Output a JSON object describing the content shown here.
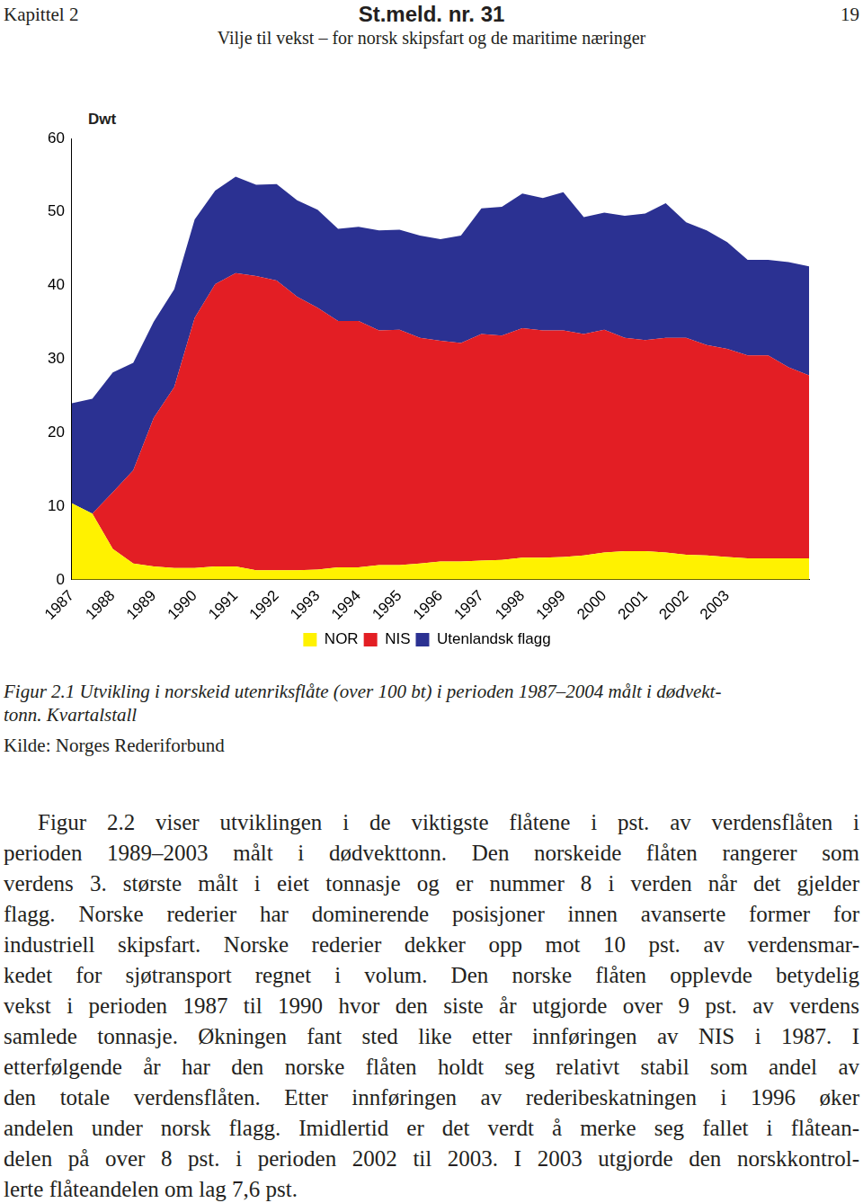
{
  "header": {
    "chapter": "Kapittel 2",
    "document": "St.meld. nr. 31",
    "page": "19",
    "subtitle": "Vilje til vekst – for norsk skipsfart og de maritime næringer"
  },
  "chart_data": {
    "type": "area",
    "y_label": "Dwt",
    "stacked": true,
    "grid": false,
    "legend": "bottom",
    "ylim": [
      0,
      60
    ],
    "yticks": [
      0,
      10,
      20,
      30,
      40,
      50,
      60
    ],
    "categories": [
      "1987",
      null,
      "1988",
      null,
      "1989",
      null,
      "1990",
      null,
      "1991",
      null,
      "1992",
      null,
      "1993",
      null,
      "1994",
      null,
      "1995",
      null,
      "1996",
      null,
      "1997",
      null,
      "1998",
      null,
      "1999",
      null,
      "2000",
      null,
      "2001",
      null,
      "2002",
      null,
      "2003",
      null,
      null,
      null,
      null
    ],
    "series": [
      {
        "name": "NOR",
        "color": "#fff200",
        "values": [
          10.4,
          9.0,
          4.2,
          2.2,
          1.8,
          1.6,
          1.6,
          1.8,
          1.8,
          1.3,
          1.3,
          1.3,
          1.4,
          1.7,
          1.7,
          2.0,
          2.0,
          2.2,
          2.5,
          2.5,
          2.6,
          2.7,
          3.0,
          3.0,
          3.1,
          3.3,
          3.7,
          3.9,
          3.9,
          3.7,
          3.4,
          3.3,
          3.1,
          2.9,
          2.9,
          2.9,
          2.9
        ]
      },
      {
        "name": "NIS",
        "color": "#e31e24",
        "values": [
          0,
          0,
          7.7,
          12.7,
          20.2,
          24.6,
          34.0,
          38.4,
          39.9,
          40.0,
          39.4,
          37.2,
          35.6,
          33.5,
          33.5,
          31.9,
          32.0,
          30.7,
          30.0,
          29.7,
          30.8,
          30.5,
          31.2,
          30.9,
          30.8,
          30.1,
          30.3,
          29.0,
          28.7,
          29.2,
          29.5,
          28.6,
          28.3,
          27.6,
          27.6,
          26.0,
          24.9
        ]
      },
      {
        "name": "Utenlandsk flagg",
        "color": "#2b3192",
        "values": [
          13.6,
          15.6,
          16.3,
          14.6,
          13.1,
          13.3,
          13.4,
          12.7,
          13.1,
          12.4,
          13.1,
          13.1,
          13.3,
          12.5,
          12.8,
          13.6,
          13.6,
          13.9,
          13.8,
          14.6,
          17.1,
          17.5,
          18.3,
          18.0,
          18.8,
          15.9,
          15.9,
          16.6,
          17.2,
          18.3,
          15.7,
          15.6,
          14.5,
          13.0,
          13.0,
          14.3,
          14.8
        ]
      }
    ]
  },
  "caption": {
    "lines": [
      "Figur 2.1 Utvikling i norskeid utenriksflåte (over 100 bt) i perioden 1987–2004 målt i dødvekt-",
      "tonn. Kvartalstall"
    ],
    "source": "Kilde: Norges Rederiforbund"
  },
  "body": {
    "lines": [
      "Figur 2.2 viser utviklingen i de viktigste flåtene i pst. av verdensflåten i",
      "perioden 1989–2003 målt i dødvekttonn. Den norskeide flåten rangerer som",
      "verdens 3. største målt i eiet tonnasje og er nummer 8 i verden når det gjelder",
      "flagg. Norske rederier har dominerende posisjoner innen avanserte former for",
      "industriell skipsfart. Norske rederier dekker opp mot 10 pst. av verdensmar-",
      "kedet for sjøtransport regnet i volum. Den norske flåten opplevde betydelig",
      "vekst i perioden 1987 til 1990 hvor den siste år utgjorde over 9 pst. av verdens",
      "samlede tonnasje. Økningen fant sted like etter innføringen av NIS i 1987. I",
      "etterfølgende år har den norske flåten holdt seg relativt stabil som andel av",
      "den totale verdensflåten. Etter innføringen av rederibeskatningen i 1996 øker",
      "andelen under norsk flagg. Imidlertid er det verdt å merke seg fallet i flåtean-",
      "delen på over 8 pst. i perioden 2002 til 2003. I 2003 utgjorde den norskkontrol-",
      "lerte flåteandelen om lag 7,6 pst."
    ]
  }
}
